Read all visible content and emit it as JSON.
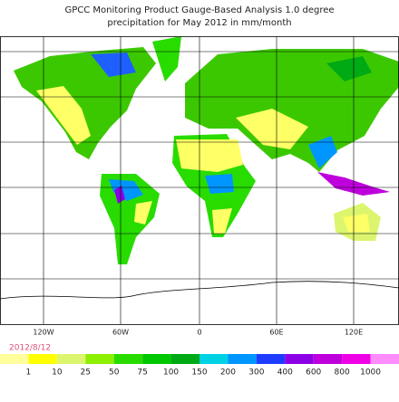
{
  "header": {
    "title": "GPCC Monitoring Product Gauge-Based Analysis 1.0 degree",
    "subtitle": "precipitation for May  2012 in mm/month"
  },
  "map": {
    "longitude_labels": [
      "120W",
      "60W",
      "0",
      "60E",
      "120E"
    ]
  },
  "footer": {
    "date": "2012/8/12"
  },
  "legend": {
    "labels": [
      1,
      10,
      25,
      50,
      75,
      100,
      150,
      200,
      300,
      400,
      600,
      800,
      1000
    ],
    "colors": [
      "#ffff9c",
      "#ffff00",
      "#dcf56e",
      "#8cf000",
      "#28dc00",
      "#00c800",
      "#00aa14",
      "#00d2e6",
      "#0096ff",
      "#1e3cff",
      "#8c00e6",
      "#be00dc",
      "#f000e6",
      "#ff8cff"
    ]
  }
}
